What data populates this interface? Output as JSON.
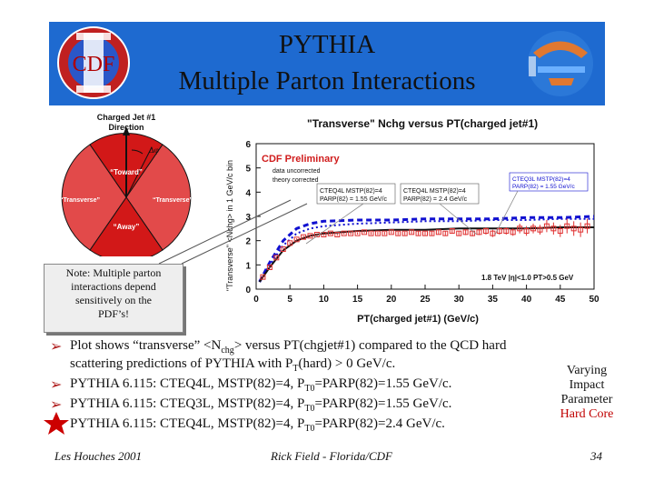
{
  "slide": {
    "title_line1": "PYTHIA",
    "title_line2": "Multiple Parton Interactions",
    "logo_left_text": "CDF",
    "note": [
      "Note: Multiple parton",
      "interactions depend",
      "sensitively on the",
      "PDF’s!"
    ],
    "diagram": {
      "header1": "Charged Jet #1",
      "header2": "Direction",
      "dphi": "Δφ",
      "toward": "“Toward”",
      "transverse_left": "“Transverse”",
      "transverse_right": "“Transverse”",
      "away": "“Away”"
    },
    "bullets": [
      {
        "pre": "Plot shows “transverse” <N",
        "sub": "chg",
        "post": "> versus PT(chgjet#1) compared to the QCD hard"
      },
      {
        "pre": "scattering predictions of PYTHIA with P",
        "sub": "T",
        "post": "(hard) > 0 GeV/c."
      },
      {
        "pre": "PYTHIA 6.115: CTEQ4L, MSTP(82)=4, P",
        "sub": "T0",
        "post": "=PARP(82)=1.55 GeV/c."
      },
      {
        "pre": "PYTHIA 6.115: CTEQ3L, MSTP(82)=4, P",
        "sub": "T0",
        "post": "=PARP(82)=1.55 GeV/c."
      },
      {
        "pre": "PYTHIA 6.115: CTEQ4L, MSTP(82)=4, P",
        "sub": "T0",
        "post": "=PARP(82)=2.4 GeV/c."
      }
    ],
    "side_note": {
      "l1": "Varying",
      "l2": "Impact",
      "l3": "Parameter",
      "l4": "Hard Core"
    },
    "footer_left": "Les Houches 2001",
    "footer_center": "Rick Field - Florida/CDF",
    "footer_right": "34",
    "colors": {
      "header": "#1e6ad0",
      "accent_red": "#c00000",
      "data_red": "#e03030",
      "model_blue": "#1010d0"
    }
  },
  "chart_data": {
    "type": "line",
    "title": "\"Transverse\" Nchg versus PT(charged jet#1)",
    "xlabel": "PT(charged jet#1)  (GeV/c)",
    "ylabel": "\"Transverse\" <Nchg> in 1 GeV/c bin",
    "xlim": [
      0,
      50
    ],
    "ylim": [
      0,
      6
    ],
    "xticks": [
      "0",
      "5",
      "10",
      "15",
      "20",
      "25",
      "30",
      "35",
      "40",
      "45",
      "50"
    ],
    "yticks": [
      "0",
      "1",
      "2",
      "3",
      "4",
      "5",
      "6"
    ],
    "annotations": {
      "preliminary": "CDF Preliminary",
      "line1": "data uncorrected",
      "line2": "theory corrected",
      "cut": "1.8 TeV |η|<1.0 PT>0.5 GeV",
      "box_cteq4l_155": [
        "CTEQ4L MSTP(82)=4",
        "PARP(82) = 1.55 GeV/c"
      ],
      "box_cteq4l_24": [
        "CTEQ4L MSTP(82)=4",
        "PARP(82) = 2.4 GeV/c"
      ],
      "box_cteq3l_155": [
        "CTEQ3L MSTP(82)=4",
        "PARP(82) = 1.55 GeV/c"
      ]
    },
    "series": [
      {
        "name": "data uncorrected",
        "style": "points",
        "x": [
          1,
          2,
          3,
          4,
          5,
          6,
          7,
          8,
          9,
          10,
          11,
          12,
          13,
          14,
          15,
          16,
          17,
          18,
          19,
          20,
          21,
          22,
          23,
          24,
          25,
          26,
          27,
          28,
          29,
          30,
          31,
          32,
          33,
          34,
          35,
          36,
          37,
          38,
          39,
          40,
          41,
          42,
          43,
          44,
          45,
          46,
          47,
          48,
          49
        ],
        "y": [
          0.5,
          0.9,
          1.3,
          1.65,
          1.9,
          2.05,
          2.15,
          2.2,
          2.25,
          2.25,
          2.3,
          2.25,
          2.3,
          2.3,
          2.3,
          2.35,
          2.3,
          2.3,
          2.3,
          2.35,
          2.3,
          2.3,
          2.35,
          2.3,
          2.3,
          2.3,
          2.35,
          2.3,
          2.4,
          2.3,
          2.35,
          2.3,
          2.35,
          2.4,
          2.3,
          2.4,
          2.4,
          2.35,
          2.5,
          2.4,
          2.5,
          2.45,
          2.6,
          2.5,
          2.4,
          2.6,
          2.5,
          2.45,
          2.6
        ],
        "err": [
          0.05,
          0.05,
          0.05,
          0.05,
          0.05,
          0.05,
          0.05,
          0.05,
          0.05,
          0.05,
          0.05,
          0.05,
          0.05,
          0.05,
          0.05,
          0.05,
          0.06,
          0.06,
          0.06,
          0.06,
          0.07,
          0.07,
          0.07,
          0.08,
          0.08,
          0.08,
          0.1,
          0.1,
          0.1,
          0.1,
          0.12,
          0.12,
          0.12,
          0.15,
          0.15,
          0.15,
          0.15,
          0.15,
          0.2,
          0.2,
          0.2,
          0.2,
          0.25,
          0.25,
          0.25,
          0.3,
          0.3,
          0.3,
          0.3
        ]
      },
      {
        "name": "CTEQ4L PARP(82)=1.55",
        "style": "blue-dashed",
        "x": [
          0.5,
          2,
          4,
          6,
          8,
          10,
          15,
          20,
          25,
          30,
          35,
          40,
          45,
          50
        ],
        "y": [
          0.3,
          1.1,
          2.0,
          2.5,
          2.7,
          2.8,
          2.85,
          2.85,
          2.9,
          2.9,
          2.9,
          2.95,
          2.95,
          3.0
        ]
      },
      {
        "name": "CTEQ3L PARP(82)=1.55",
        "style": "blue-dotted",
        "x": [
          0.5,
          2,
          4,
          6,
          8,
          10,
          15,
          20,
          25,
          30,
          35,
          40,
          45,
          50
        ],
        "y": [
          0.3,
          1.0,
          1.8,
          2.3,
          2.5,
          2.6,
          2.7,
          2.75,
          2.8,
          2.8,
          2.85,
          2.85,
          2.9,
          2.9
        ]
      },
      {
        "name": "CTEQ4L PARP(82)=2.4",
        "style": "black-solid",
        "x": [
          0.5,
          2,
          4,
          6,
          8,
          10,
          15,
          20,
          25,
          30,
          35,
          40,
          45,
          50
        ],
        "y": [
          0.3,
          0.9,
          1.6,
          2.0,
          2.2,
          2.3,
          2.4,
          2.45,
          2.45,
          2.5,
          2.5,
          2.5,
          2.55,
          2.55
        ]
      }
    ]
  }
}
